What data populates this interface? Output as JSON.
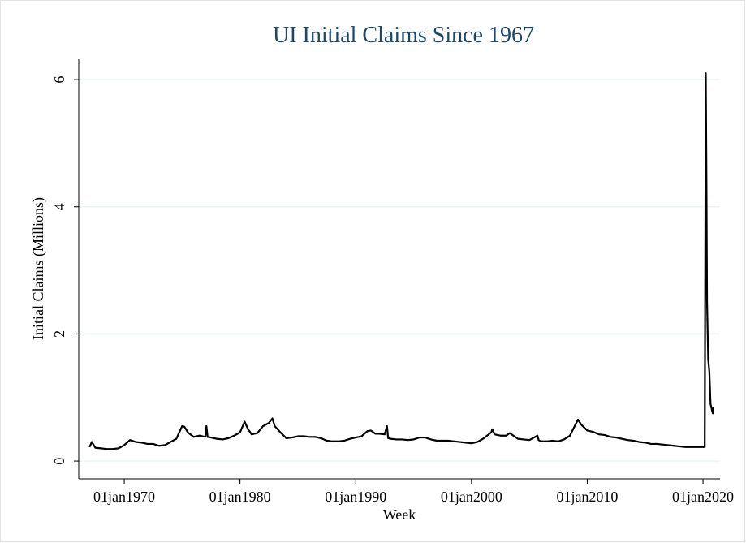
{
  "chart_data": {
    "type": "line",
    "title": "UI Initial Claims Since 1967",
    "x_label": "Week",
    "y_label": "Initial Claims (Millions)",
    "xlim": [
      1966.07,
      2021.47
    ],
    "ylim": [
      -0.28,
      6.32
    ],
    "grid": true,
    "xticks": [
      {
        "value": 1970,
        "label": "01jan1970"
      },
      {
        "value": 1980,
        "label": "01jan1980"
      },
      {
        "value": 1990,
        "label": "01jan1990"
      },
      {
        "value": 2000,
        "label": "01jan2000"
      },
      {
        "value": 2010,
        "label": "01jan2010"
      },
      {
        "value": 2020,
        "label": "01jan2020"
      }
    ],
    "yticks": [
      0,
      2,
      4,
      6
    ],
    "x": [
      1967.0,
      1967.2,
      1967.5,
      1968.0,
      1968.5,
      1969.0,
      1969.5,
      1970.0,
      1970.5,
      1971.0,
      1971.5,
      1972.0,
      1972.5,
      1973.0,
      1973.5,
      1974.0,
      1974.5,
      1975.0,
      1975.2,
      1975.5,
      1976.0,
      1976.5,
      1977.0,
      1977.1,
      1977.2,
      1977.5,
      1978.0,
      1978.5,
      1979.0,
      1979.5,
      1980.0,
      1980.4,
      1980.7,
      1981.0,
      1981.5,
      1982.0,
      1982.5,
      1982.8,
      1983.0,
      1983.5,
      1984.0,
      1984.5,
      1985.0,
      1985.5,
      1986.0,
      1986.5,
      1987.0,
      1987.5,
      1988.0,
      1988.5,
      1989.0,
      1989.5,
      1990.0,
      1990.5,
      1991.0,
      1991.3,
      1991.7,
      1992.0,
      1992.5,
      1992.7,
      1992.8,
      1993.0,
      1993.5,
      1994.0,
      1994.5,
      1995.0,
      1995.5,
      1996.0,
      1996.5,
      1997.0,
      1997.5,
      1998.0,
      1998.5,
      1999.0,
      1999.5,
      2000.0,
      2000.5,
      2001.0,
      2001.7,
      2001.8,
      2002.0,
      2002.5,
      2003.0,
      2003.3,
      2003.7,
      2004.0,
      2004.5,
      2005.0,
      2005.7,
      2005.8,
      2006.0,
      2006.5,
      2007.0,
      2007.5,
      2008.0,
      2008.5,
      2009.0,
      2009.2,
      2009.5,
      2010.0,
      2010.5,
      2011.0,
      2011.5,
      2012.0,
      2012.5,
      2013.0,
      2013.5,
      2014.0,
      2014.5,
      2015.0,
      2015.5,
      2016.0,
      2016.5,
      2017.0,
      2017.5,
      2018.0,
      2018.5,
      2019.0,
      2019.5,
      2020.15,
      2020.2,
      2020.24,
      2020.3,
      2020.35,
      2020.45,
      2020.55,
      2020.65,
      2020.8,
      2020.85,
      2020.9
    ],
    "series": [
      {
        "name": "Initial Claims",
        "color": "#000000",
        "values": [
          0.22,
          0.3,
          0.21,
          0.2,
          0.19,
          0.19,
          0.2,
          0.25,
          0.33,
          0.3,
          0.29,
          0.27,
          0.27,
          0.24,
          0.25,
          0.3,
          0.35,
          0.55,
          0.54,
          0.45,
          0.38,
          0.4,
          0.38,
          0.55,
          0.38,
          0.37,
          0.35,
          0.34,
          0.36,
          0.4,
          0.45,
          0.62,
          0.5,
          0.42,
          0.44,
          0.55,
          0.6,
          0.67,
          0.55,
          0.45,
          0.36,
          0.37,
          0.39,
          0.39,
          0.38,
          0.38,
          0.36,
          0.32,
          0.31,
          0.31,
          0.32,
          0.35,
          0.37,
          0.39,
          0.47,
          0.48,
          0.43,
          0.43,
          0.42,
          0.55,
          0.36,
          0.35,
          0.34,
          0.34,
          0.33,
          0.34,
          0.37,
          0.37,
          0.34,
          0.32,
          0.32,
          0.32,
          0.31,
          0.3,
          0.29,
          0.28,
          0.3,
          0.35,
          0.45,
          0.5,
          0.42,
          0.4,
          0.4,
          0.44,
          0.39,
          0.35,
          0.34,
          0.33,
          0.4,
          0.33,
          0.31,
          0.31,
          0.32,
          0.31,
          0.34,
          0.4,
          0.58,
          0.65,
          0.57,
          0.48,
          0.46,
          0.42,
          0.41,
          0.38,
          0.37,
          0.35,
          0.33,
          0.32,
          0.3,
          0.29,
          0.27,
          0.27,
          0.26,
          0.25,
          0.24,
          0.23,
          0.22,
          0.22,
          0.22,
          0.22,
          3.3,
          6.1,
          4.4,
          2.5,
          1.6,
          1.4,
          0.9,
          0.78,
          0.75,
          0.85
        ]
      }
    ]
  }
}
